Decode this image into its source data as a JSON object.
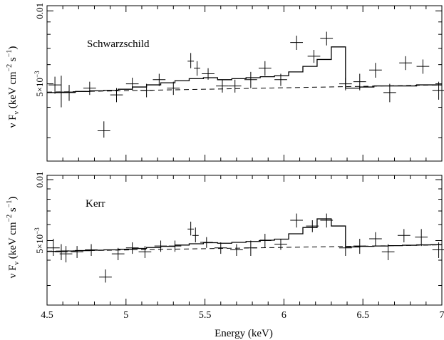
{
  "figure": {
    "xlabel": "Energy (keV)",
    "ylabel_parts": [
      "ν F",
      "ν",
      " (keV cm",
      "−2",
      " s",
      "−1",
      ")"
    ],
    "xticks": [
      {
        "v": 4.5,
        "label": "4.5"
      },
      {
        "v": 5,
        "label": "5"
      },
      {
        "v": 5.5,
        "label": "5.5"
      },
      {
        "v": 6,
        "label": "6"
      },
      {
        "v": 6.5,
        "label": "6.5"
      },
      {
        "v": 7,
        "label": "7"
      }
    ]
  },
  "chart_data": [
    {
      "type": "scatter",
      "annotation": "Schwarzschild",
      "xlim": [
        4.5,
        7
      ],
      "yscale": "log",
      "ylim": [
        0.0024,
        0.0105
      ],
      "yticks": [
        {
          "v": 0.01,
          "label": "0.01"
        },
        {
          "v": 0.005,
          "label_base": "5×10",
          "label_exp": "−3"
        }
      ],
      "data": [
        {
          "x": 4.55,
          "xerr": 0.04,
          "y": 0.00495,
          "yerr": [
            0.0004,
            0.0004
          ]
        },
        {
          "x": 4.59,
          "xerr": 0.04,
          "y": 0.0046,
          "yerr": [
            0.0006,
            0.0008
          ]
        },
        {
          "x": 4.64,
          "xerr": 0.04,
          "y": 0.0046,
          "yerr": [
            0.00035,
            0.00035
          ]
        },
        {
          "x": 4.77,
          "xerr": 0.04,
          "y": 0.0048,
          "yerr": [
            0.0003,
            0.0003
          ]
        },
        {
          "x": 4.86,
          "xerr": 0.04,
          "y": 0.0032,
          "yerr": [
            0.0002,
            0.0003
          ]
        },
        {
          "x": 4.94,
          "xerr": 0.04,
          "y": 0.0045,
          "yerr": [
            0.0003,
            0.0003
          ]
        },
        {
          "x": 5.04,
          "xerr": 0.04,
          "y": 0.005,
          "yerr": [
            0.0003,
            0.0003
          ]
        },
        {
          "x": 5.13,
          "xerr": 0.04,
          "y": 0.0047,
          "yerr": [
            0.0003,
            0.0003
          ]
        },
        {
          "x": 5.21,
          "xerr": 0.04,
          "y": 0.0052,
          "yerr": [
            0.0003,
            0.0003
          ]
        },
        {
          "x": 5.3,
          "xerr": 0.04,
          "y": 0.0048,
          "yerr": [
            0.0003,
            0.0003
          ]
        },
        {
          "x": 5.41,
          "xerr": 0.02,
          "y": 0.0062,
          "yerr": [
            0.0004,
            0.0005
          ]
        },
        {
          "x": 5.45,
          "xerr": 0.02,
          "y": 0.0058,
          "yerr": [
            0.0004,
            0.0004
          ]
        },
        {
          "x": 5.52,
          "xerr": 0.04,
          "y": 0.0055,
          "yerr": [
            0.0003,
            0.0003
          ]
        },
        {
          "x": 5.61,
          "xerr": 0.04,
          "y": 0.0049,
          "yerr": [
            0.0003,
            0.0003
          ]
        },
        {
          "x": 5.69,
          "xerr": 0.04,
          "y": 0.0049,
          "yerr": [
            0.0003,
            0.0003
          ]
        },
        {
          "x": 5.79,
          "xerr": 0.04,
          "y": 0.0052,
          "yerr": [
            0.0004,
            0.0004
          ]
        },
        {
          "x": 5.88,
          "xerr": 0.04,
          "y": 0.0058,
          "yerr": [
            0.0004,
            0.0004
          ]
        },
        {
          "x": 5.98,
          "xerr": 0.04,
          "y": 0.0052,
          "yerr": [
            0.0003,
            0.0003
          ]
        },
        {
          "x": 6.08,
          "xerr": 0.04,
          "y": 0.0074,
          "yerr": [
            0.0005,
            0.0005
          ]
        },
        {
          "x": 6.19,
          "xerr": 0.04,
          "y": 0.0065,
          "yerr": [
            0.0004,
            0.0004
          ]
        },
        {
          "x": 6.27,
          "xerr": 0.04,
          "y": 0.0077,
          "yerr": [
            0.0005,
            0.0005
          ]
        },
        {
          "x": 6.39,
          "xerr": 0.04,
          "y": 0.005,
          "yerr": [
            0.0003,
            0.0003
          ]
        },
        {
          "x": 6.48,
          "xerr": 0.04,
          "y": 0.0051,
          "yerr": [
            0.0004,
            0.0004
          ]
        },
        {
          "x": 6.58,
          "xerr": 0.04,
          "y": 0.0057,
          "yerr": [
            0.0004,
            0.0004
          ]
        },
        {
          "x": 6.67,
          "xerr": 0.04,
          "y": 0.0046,
          "yerr": [
            0.0004,
            0.0004
          ]
        },
        {
          "x": 6.77,
          "xerr": 0.04,
          "y": 0.0061,
          "yerr": [
            0.0004,
            0.0004
          ]
        },
        {
          "x": 6.88,
          "xerr": 0.04,
          "y": 0.0059,
          "yerr": [
            0.0004,
            0.0004
          ]
        },
        {
          "x": 6.98,
          "xerr": 0.04,
          "y": 0.0047,
          "yerr": [
            0.0004,
            0.0004
          ]
        }
      ],
      "model_step": [
        [
          4.5,
          0.0046
        ],
        [
          4.59,
          0.00462
        ],
        [
          4.68,
          0.00465
        ],
        [
          4.77,
          0.00468
        ],
        [
          4.86,
          0.0047
        ],
        [
          4.95,
          0.00475
        ],
        [
          5.04,
          0.00485
        ],
        [
          5.13,
          0.00495
        ],
        [
          5.22,
          0.00505
        ],
        [
          5.31,
          0.00515
        ],
        [
          5.4,
          0.00525
        ],
        [
          5.49,
          0.0053
        ],
        [
          5.58,
          0.0052
        ],
        [
          5.67,
          0.00525
        ],
        [
          5.76,
          0.0053
        ],
        [
          5.85,
          0.00535
        ],
        [
          5.94,
          0.0054
        ],
        [
          6.03,
          0.0056
        ],
        [
          6.12,
          0.0059
        ],
        [
          6.21,
          0.0063
        ],
        [
          6.3,
          0.0071
        ],
        [
          6.39,
          0.0048
        ],
        [
          6.48,
          0.00485
        ],
        [
          6.57,
          0.0049
        ],
        [
          6.66,
          0.0049
        ],
        [
          6.75,
          0.0049
        ],
        [
          6.84,
          0.00495
        ],
        [
          6.93,
          0.00495
        ],
        [
          7.0,
          0.00495
        ]
      ],
      "continuum": [
        [
          4.5,
          0.00462
        ],
        [
          7.0,
          0.00495
        ]
      ]
    },
    {
      "type": "scatter",
      "annotation": "Kerr",
      "xlim": [
        4.5,
        7
      ],
      "yscale": "log",
      "ylim": [
        0.0024,
        0.0105
      ],
      "yticks": [
        {
          "v": 0.01,
          "label": "0.01"
        },
        {
          "v": 0.005,
          "label_base": "5×10",
          "label_exp": "−3"
        }
      ],
      "data": [
        {
          "x": 4.54,
          "xerr": 0.04,
          "y": 0.0046,
          "yerr": [
            0.0004,
            0.0005
          ]
        },
        {
          "x": 4.59,
          "xerr": 0.04,
          "y": 0.0044,
          "yerr": [
            0.0004,
            0.0004
          ]
        },
        {
          "x": 4.62,
          "xerr": 0.04,
          "y": 0.0043,
          "yerr": [
            0.0004,
            0.0004
          ]
        },
        {
          "x": 4.69,
          "xerr": 0.04,
          "y": 0.0044,
          "yerr": [
            0.0003,
            0.0003
          ]
        },
        {
          "x": 4.78,
          "xerr": 0.04,
          "y": 0.0045,
          "yerr": [
            0.0003,
            0.0003
          ]
        },
        {
          "x": 4.87,
          "xerr": 0.04,
          "y": 0.0033,
          "yerr": [
            0.0002,
            0.0003
          ]
        },
        {
          "x": 4.95,
          "xerr": 0.04,
          "y": 0.0043,
          "yerr": [
            0.0003,
            0.0003
          ]
        },
        {
          "x": 5.04,
          "xerr": 0.04,
          "y": 0.0046,
          "yerr": [
            0.0003,
            0.0003
          ]
        },
        {
          "x": 5.12,
          "xerr": 0.04,
          "y": 0.0044,
          "yerr": [
            0.0003,
            0.0003
          ]
        },
        {
          "x": 5.22,
          "xerr": 0.04,
          "y": 0.0047,
          "yerr": [
            0.0003,
            0.0003
          ]
        },
        {
          "x": 5.31,
          "xerr": 0.04,
          "y": 0.0047,
          "yerr": [
            0.0003,
            0.0003
          ]
        },
        {
          "x": 5.41,
          "xerr": 0.02,
          "y": 0.0057,
          "yerr": [
            0.0004,
            0.0005
          ]
        },
        {
          "x": 5.44,
          "xerr": 0.02,
          "y": 0.0053,
          "yerr": [
            0.0004,
            0.0005
          ]
        },
        {
          "x": 5.51,
          "xerr": 0.04,
          "y": 0.0049,
          "yerr": [
            0.0003,
            0.0003
          ]
        },
        {
          "x": 5.6,
          "xerr": 0.04,
          "y": 0.0046,
          "yerr": [
            0.0003,
            0.0003
          ]
        },
        {
          "x": 5.7,
          "xerr": 0.04,
          "y": 0.0045,
          "yerr": [
            0.0003,
            0.0003
          ]
        },
        {
          "x": 5.79,
          "xerr": 0.04,
          "y": 0.0046,
          "yerr": [
            0.0004,
            0.0004
          ]
        },
        {
          "x": 5.88,
          "xerr": 0.04,
          "y": 0.005,
          "yerr": [
            0.0004,
            0.0004
          ]
        },
        {
          "x": 5.98,
          "xerr": 0.04,
          "y": 0.0048,
          "yerr": [
            0.0003,
            0.0003
          ]
        },
        {
          "x": 6.08,
          "xerr": 0.04,
          "y": 0.0063,
          "yerr": [
            0.0005,
            0.0005
          ]
        },
        {
          "x": 6.18,
          "xerr": 0.04,
          "y": 0.0059,
          "yerr": [
            0.0004,
            0.0004
          ]
        },
        {
          "x": 6.27,
          "xerr": 0.04,
          "y": 0.0063,
          "yerr": [
            0.0005,
            0.0005
          ]
        },
        {
          "x": 6.39,
          "xerr": 0.04,
          "y": 0.0046,
          "yerr": [
            0.0004,
            0.0004
          ]
        },
        {
          "x": 6.48,
          "xerr": 0.04,
          "y": 0.0047,
          "yerr": [
            0.0004,
            0.0004
          ]
        },
        {
          "x": 6.58,
          "xerr": 0.04,
          "y": 0.0051,
          "yerr": [
            0.0004,
            0.0004
          ]
        },
        {
          "x": 6.66,
          "xerr": 0.04,
          "y": 0.0044,
          "yerr": [
            0.0004,
            0.0004
          ]
        },
        {
          "x": 6.76,
          "xerr": 0.04,
          "y": 0.0053,
          "yerr": [
            0.0004,
            0.0004
          ]
        },
        {
          "x": 6.87,
          "xerr": 0.04,
          "y": 0.0052,
          "yerr": [
            0.0005,
            0.0005
          ]
        },
        {
          "x": 6.98,
          "xerr": 0.04,
          "y": 0.0045,
          "yerr": [
            0.0004,
            0.0004
          ]
        }
      ],
      "model_step": [
        [
          4.5,
          0.00442
        ],
        [
          4.59,
          0.00444
        ],
        [
          4.68,
          0.00446
        ],
        [
          4.77,
          0.00448
        ],
        [
          4.86,
          0.0045
        ],
        [
          4.95,
          0.00453
        ],
        [
          5.04,
          0.00457
        ],
        [
          5.13,
          0.00462
        ],
        [
          5.22,
          0.00468
        ],
        [
          5.31,
          0.00475
        ],
        [
          5.4,
          0.00482
        ],
        [
          5.49,
          0.00488
        ],
        [
          5.58,
          0.00485
        ],
        [
          5.67,
          0.0049
        ],
        [
          5.76,
          0.00495
        ],
        [
          5.85,
          0.00502
        ],
        [
          5.94,
          0.00508
        ],
        [
          6.03,
          0.0054
        ],
        [
          6.12,
          0.0058
        ],
        [
          6.21,
          0.0064
        ],
        [
          6.3,
          0.0059
        ],
        [
          6.39,
          0.00465
        ],
        [
          6.48,
          0.00468
        ],
        [
          6.57,
          0.0047
        ],
        [
          6.66,
          0.00472
        ],
        [
          6.75,
          0.00474
        ],
        [
          6.84,
          0.00476
        ],
        [
          6.93,
          0.00477
        ],
        [
          7.0,
          0.00477
        ]
      ],
      "continuum": [
        [
          4.5,
          0.00443
        ],
        [
          7.0,
          0.00476
        ]
      ]
    }
  ]
}
